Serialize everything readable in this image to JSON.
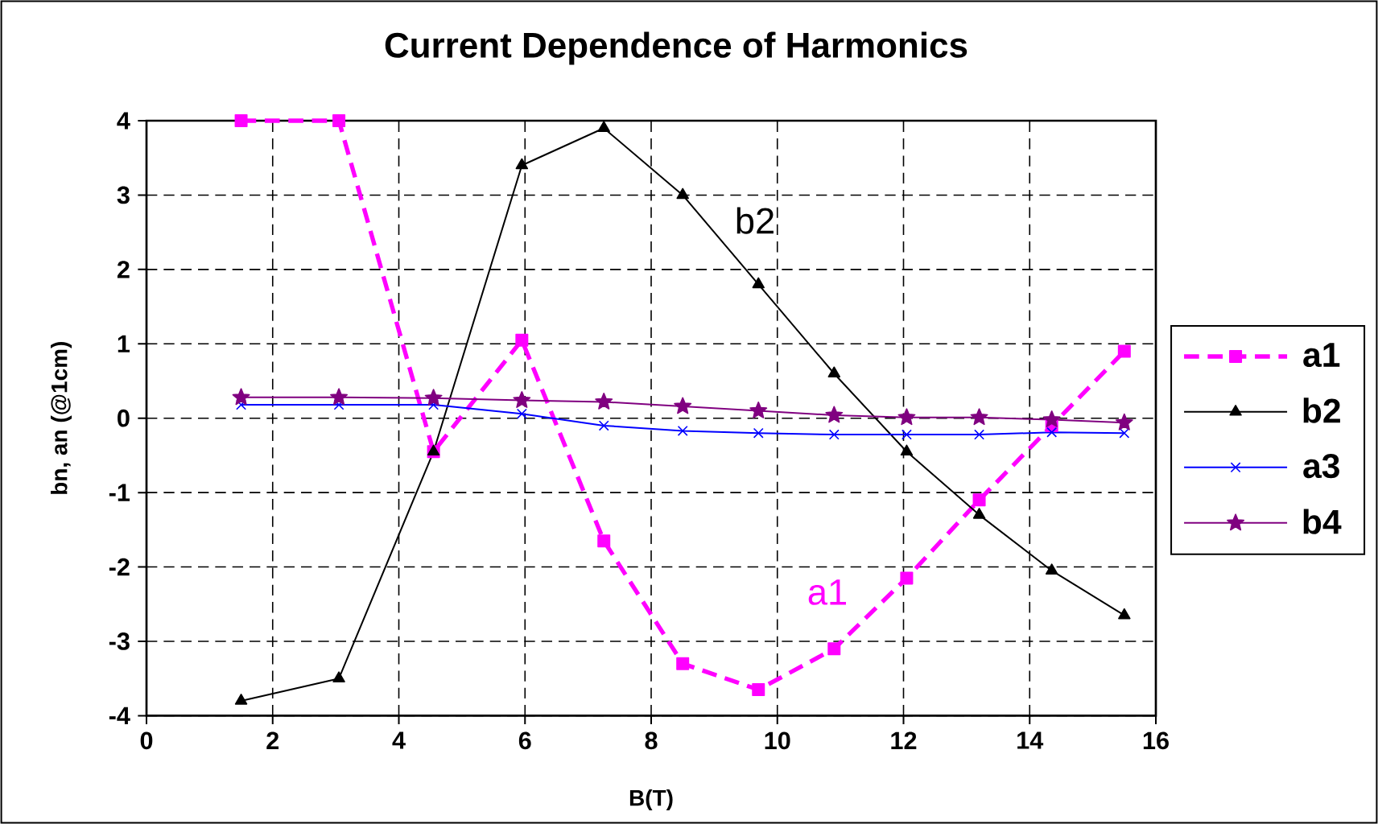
{
  "chart_data": {
    "type": "line",
    "title": "Current Dependence of Harmonics",
    "xlabel": "B(T)",
    "ylabel": "bn, an (@1cm)",
    "x": [
      1.5,
      3.05,
      4.55,
      5.95,
      7.25,
      8.5,
      9.7,
      10.9,
      12.05,
      13.2,
      14.35,
      15.5
    ],
    "series": [
      {
        "name": "a1",
        "color": "#ff00ff",
        "marker": "square",
        "line_style": "dashed",
        "values": [
          4,
          4,
          -0.45,
          1.05,
          -1.65,
          -3.3,
          -3.65,
          -3.1,
          -2.15,
          -1.1,
          -0.1,
          0.9
        ]
      },
      {
        "name": "b2",
        "color": "#000000",
        "marker": "triangle",
        "line_style": "solid",
        "values": [
          -3.8,
          -3.5,
          -0.45,
          3.4,
          3.9,
          3.0,
          1.8,
          0.6,
          -0.45,
          -1.3,
          -2.05,
          -2.65
        ]
      },
      {
        "name": "a3",
        "color": "#0000ff",
        "marker": "cross",
        "line_style": "solid",
        "values": [
          0.18,
          0.18,
          0.18,
          0.06,
          -0.1,
          -0.17,
          -0.2,
          -0.22,
          -0.22,
          -0.22,
          -0.19,
          -0.2
        ]
      },
      {
        "name": "b4",
        "color": "#800080",
        "marker": "star",
        "line_style": "solid",
        "values": [
          0.28,
          0.28,
          0.27,
          0.24,
          0.22,
          0.16,
          0.1,
          0.04,
          0.01,
          0.01,
          -0.02,
          -0.06
        ]
      }
    ],
    "xlim": [
      0,
      16
    ],
    "xticks": [
      0,
      2,
      4,
      6,
      8,
      10,
      12,
      14,
      16
    ],
    "ylim": [
      -4,
      4
    ],
    "yticks": [
      -4,
      -3,
      -2,
      -1,
      0,
      1,
      2,
      3,
      4
    ],
    "annotations": [
      "b2",
      "a1"
    ],
    "grid": true,
    "legend": "right"
  }
}
